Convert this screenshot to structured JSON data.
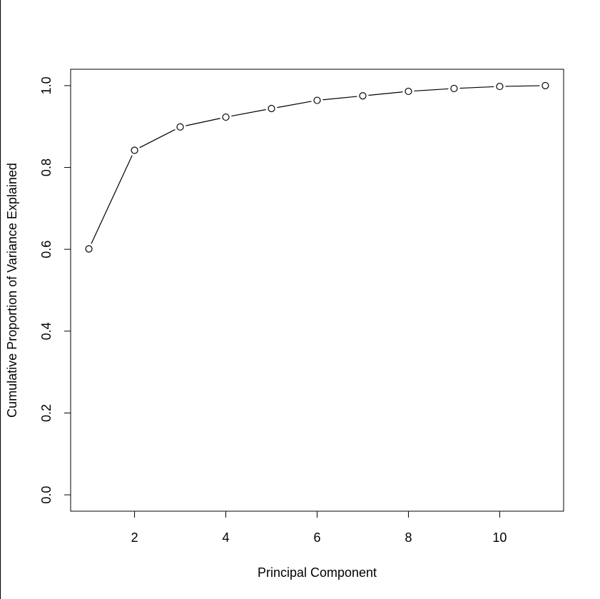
{
  "chart_data": {
    "type": "line",
    "title": "",
    "xlabel": "Principal Component",
    "ylabel": "Cumulative Proportion of Variance Explained",
    "xlim": [
      0.6,
      11.4
    ],
    "ylim": [
      -0.04,
      1.04
    ],
    "x_ticks": [
      2,
      4,
      6,
      8,
      10
    ],
    "y_ticks": [
      0.0,
      0.2,
      0.4,
      0.6,
      0.8,
      1.0
    ],
    "x_tick_labels": [
      "2",
      "4",
      "6",
      "8",
      "10"
    ],
    "y_tick_labels": [
      "0.0",
      "0.2",
      "0.4",
      "0.6",
      "0.8",
      "1.0"
    ],
    "grid": false,
    "marker": "open-circle",
    "line_color": "#000000",
    "series": [
      {
        "x": [
          1,
          2,
          3,
          4,
          5,
          6,
          7,
          8,
          9,
          10,
          11
        ],
        "values": [
          0.601,
          0.842,
          0.899,
          0.923,
          0.944,
          0.964,
          0.975,
          0.986,
          0.993,
          0.998,
          1.0
        ]
      }
    ]
  }
}
